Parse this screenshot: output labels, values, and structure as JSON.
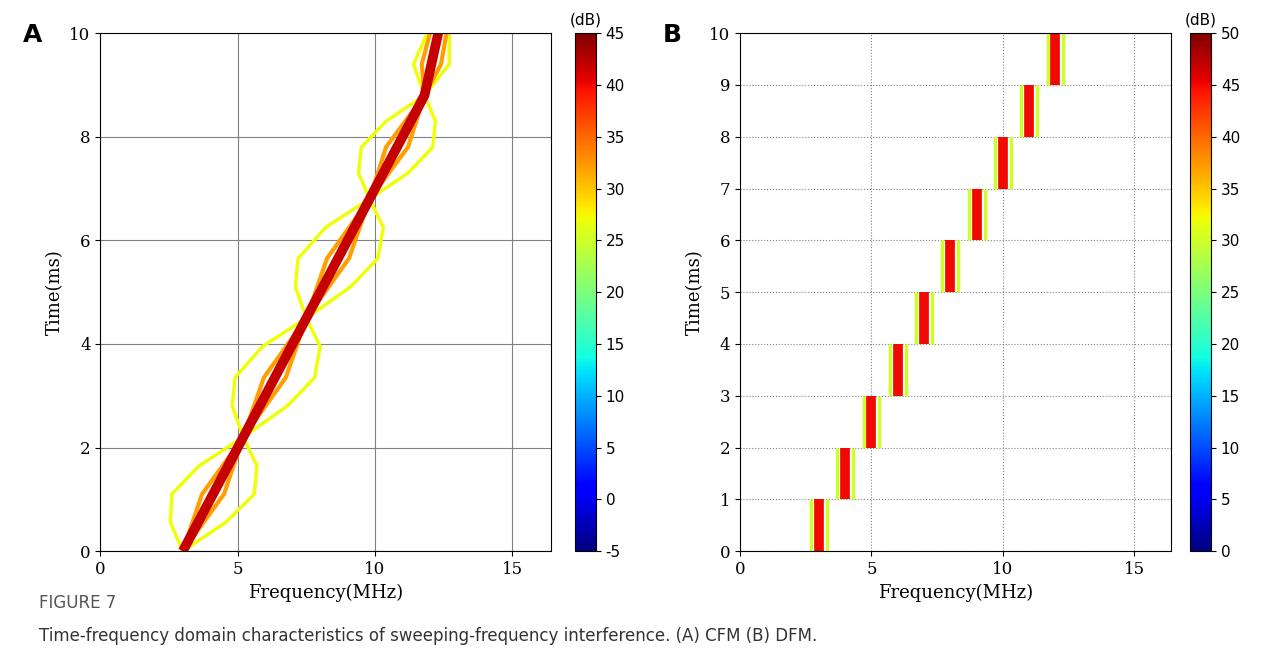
{
  "chart_data": [
    {
      "type": "line",
      "panel": "A",
      "x_label": "Frequency(MHz)",
      "y_label": "Time(ms)",
      "xlim": [
        0,
        16.4
      ],
      "xticks": [
        0,
        5,
        10,
        15
      ],
      "ylim": [
        0,
        10
      ],
      "yticks": [
        0,
        2,
        4,
        6,
        8,
        10
      ],
      "grid": true,
      "colorbar": {
        "title": "(dB)",
        "range": [
          -5,
          45
        ],
        "ticks": [
          -5,
          0,
          5,
          10,
          15,
          20,
          25,
          30,
          35,
          40,
          45
        ]
      },
      "series": [
        {
          "level": 27,
          "x": [
            3.0,
            2.55,
            2.6,
            3.6,
            5.2,
            4.8,
            4.9,
            5.9,
            7.5,
            7.1,
            7.2,
            8.2,
            9.8,
            9.4,
            9.5,
            10.4,
            11.8,
            11.4,
            11.9
          ],
          "values": [
            0,
            0.55,
            1.1,
            1.65,
            2.2,
            2.8,
            3.35,
            3.95,
            4.5,
            5.1,
            5.65,
            6.25,
            6.8,
            7.3,
            7.8,
            8.3,
            8.8,
            9.4,
            10
          ]
        },
        {
          "level": 27,
          "x": [
            3.0,
            4.55,
            5.6,
            5.7,
            5.2,
            6.8,
            7.8,
            8.0,
            7.5,
            9.1,
            10.1,
            10.3,
            9.8,
            11.2,
            12.1,
            12.2,
            11.8,
            12.7,
            12.7
          ],
          "values": [
            0,
            0.55,
            1.1,
            1.65,
            2.2,
            2.8,
            3.35,
            3.95,
            4.5,
            5.1,
            5.65,
            6.25,
            6.8,
            7.3,
            7.8,
            8.3,
            8.8,
            9.4,
            10
          ]
        },
        {
          "level": 32,
          "x": [
            3.0,
            3.7,
            5.2,
            5.95,
            7.5,
            8.25,
            9.8,
            10.4,
            11.8,
            11.7,
            12.0
          ],
          "values": [
            0,
            1.1,
            2.2,
            3.35,
            4.5,
            5.65,
            6.8,
            7.8,
            8.8,
            9.4,
            10
          ]
        },
        {
          "level": 32,
          "x": [
            3.0,
            4.5,
            5.2,
            6.75,
            7.5,
            9.05,
            9.8,
            11.2,
            11.8,
            12.4,
            12.6
          ],
          "values": [
            0,
            1.1,
            2.2,
            3.35,
            4.5,
            5.65,
            6.8,
            7.8,
            8.8,
            9.4,
            10
          ]
        },
        {
          "level": 42,
          "x": [
            3.0,
            5.2,
            7.5,
            9.8,
            11.8,
            12.3
          ],
          "values": [
            0,
            2.2,
            4.5,
            6.8,
            8.8,
            10
          ]
        }
      ]
    },
    {
      "type": "line",
      "panel": "B",
      "x_label": "Frequency(MHz)",
      "y_label": "Time(ms)",
      "xlim": [
        0,
        16.4
      ],
      "xticks": [
        0,
        5,
        10,
        15
      ],
      "ylim": [
        0,
        10
      ],
      "yticks": [
        0,
        1,
        2,
        3,
        4,
        5,
        6,
        7,
        8,
        9,
        10
      ],
      "grid": true,
      "colorbar": {
        "title": "(dB)",
        "range": [
          0,
          50
        ],
        "ticks": [
          0,
          5,
          10,
          15,
          20,
          25,
          30,
          35,
          40,
          45,
          50
        ]
      },
      "series": [
        {
          "level": 30,
          "x": [
            2.7,
            2.7,
            null,
            3.7,
            3.7,
            null,
            4.7,
            4.7,
            null,
            5.7,
            5.7,
            null,
            6.7,
            6.7,
            null,
            7.7,
            7.7,
            null,
            8.7,
            8.7,
            null,
            9.7,
            9.7,
            null,
            10.7,
            10.7,
            null,
            11.7,
            11.7
          ],
          "values": [
            0,
            1,
            null,
            1,
            2,
            null,
            2,
            3,
            null,
            3,
            4,
            null,
            4,
            5,
            null,
            5,
            6,
            null,
            6,
            7,
            null,
            7,
            8,
            null,
            8,
            9,
            null,
            9,
            10
          ]
        },
        {
          "level": 30,
          "x": [
            3.3,
            3.3,
            null,
            4.3,
            4.3,
            null,
            5.3,
            5.3,
            null,
            6.3,
            6.3,
            null,
            7.3,
            7.3,
            null,
            8.3,
            8.3,
            null,
            9.3,
            9.3,
            null,
            10.3,
            10.3,
            null,
            11.3,
            11.3,
            null,
            12.3,
            12.3
          ],
          "values": [
            0,
            1,
            null,
            1,
            2,
            null,
            2,
            3,
            null,
            3,
            4,
            null,
            4,
            5,
            null,
            5,
            6,
            null,
            6,
            7,
            null,
            7,
            8,
            null,
            8,
            9,
            null,
            9,
            10
          ]
        },
        {
          "level": 45,
          "x": [
            3,
            3,
            null,
            4,
            4,
            null,
            5,
            5,
            null,
            6,
            6,
            null,
            7,
            7,
            null,
            8,
            8,
            null,
            9,
            9,
            null,
            10,
            10,
            null,
            11,
            11,
            null,
            12,
            12
          ],
          "values": [
            0,
            1,
            null,
            1,
            2,
            null,
            2,
            3,
            null,
            3,
            4,
            null,
            4,
            5,
            null,
            5,
            6,
            null,
            6,
            7,
            null,
            7,
            8,
            null,
            8,
            9,
            null,
            9,
            10
          ]
        }
      ]
    }
  ],
  "caption": {
    "label": "FIGURE 7",
    "text": "Time-frequency domain characteristics of sweeping-frequency interference. (A) CFM (B) DFM."
  }
}
